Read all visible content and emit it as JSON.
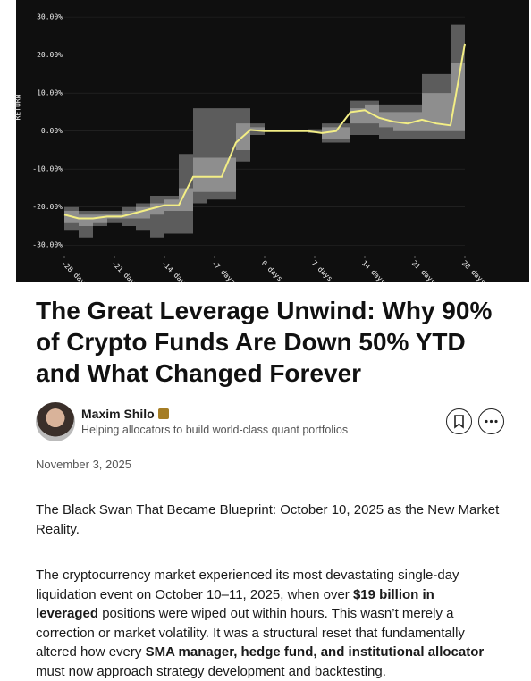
{
  "chart": {
    "type": "band-line",
    "y_label": "RETURN",
    "x": [
      -28,
      -26,
      -24,
      -22,
      -20,
      -18,
      -16,
      -14,
      -12,
      -10,
      -8,
      -6,
      -4,
      -2,
      0,
      2,
      4,
      6,
      8,
      10,
      12,
      14,
      16,
      18,
      20,
      22,
      24,
      26,
      28
    ],
    "ylim": [
      -33,
      34.5
    ],
    "xlim": [
      -28,
      28
    ],
    "yticks": [
      {
        "value": 30,
        "label": "30.00%"
      },
      {
        "value": 20,
        "label": "20.00%"
      },
      {
        "value": 10,
        "label": "10.00%"
      },
      {
        "value": 0,
        "label": "0.00%"
      },
      {
        "value": -10,
        "label": "-10.00%"
      },
      {
        "value": -20,
        "label": "-20.00%"
      },
      {
        "value": -30,
        "label": "-30.00%"
      }
    ],
    "xticks": [
      {
        "value": -28,
        "label": "-28 days"
      },
      {
        "value": -21,
        "label": "-21 days"
      },
      {
        "value": -14,
        "label": "-14 days"
      },
      {
        "value": -7,
        "label": "-7 days"
      },
      {
        "value": 0,
        "label": "0 days"
      },
      {
        "value": 7,
        "label": "7 days"
      },
      {
        "value": 14,
        "label": "14 days"
      },
      {
        "value": 21,
        "label": "21 days"
      },
      {
        "value": 28,
        "label": "28 days"
      }
    ],
    "bands": [
      {
        "color": "#5c5c5c",
        "lower": [
          -26,
          -28,
          -25,
          -24,
          -25,
          -26,
          -28,
          -27,
          -27,
          -19,
          -18,
          -18,
          -8,
          -1,
          0,
          0,
          0,
          -0.5,
          -3,
          -3,
          -1,
          -1,
          -2,
          -2,
          -2,
          -2,
          -2,
          -2,
          -2
        ],
        "upper": [
          -20,
          -21,
          -21,
          -21,
          -20,
          -19,
          -17,
          -17,
          -6,
          6,
          6,
          6,
          6,
          2,
          0,
          0,
          0,
          0.5,
          2,
          2,
          8,
          8,
          7,
          7,
          7,
          15,
          15,
          28,
          35
        ]
      },
      {
        "color": "#8e8e8e",
        "lower": [
          -24,
          -25,
          -24,
          -23,
          -23,
          -23,
          -22,
          -21,
          -21,
          -16,
          -16,
          -16,
          -5,
          0,
          0,
          0,
          0,
          0,
          -2,
          -2,
          2,
          2,
          1,
          0,
          0,
          0,
          0,
          0,
          0
        ],
        "upper": [
          -21,
          -22,
          -22,
          -22,
          -21,
          -20,
          -19,
          -18,
          -15,
          -7,
          -7,
          -7,
          2,
          1,
          0,
          0,
          0,
          0,
          1,
          1,
          6,
          7,
          5,
          5,
          5,
          10,
          10,
          18,
          30
        ]
      }
    ],
    "line": {
      "color": "#f3ee85",
      "values": [
        -22,
        -23,
        -23,
        -22.5,
        -22.5,
        -21.5,
        -20.5,
        -19.5,
        -19.5,
        -12,
        -12,
        -12,
        -3,
        0.3,
        0,
        0,
        0,
        0,
        -0.5,
        0,
        5,
        5.5,
        3.5,
        2.5,
        2,
        3,
        2,
        1.5,
        23
      ]
    }
  },
  "article": {
    "title": "The Great Leverage Unwind: Why 90% of Crypto Funds Are Down 50% YTD and What Changed Forever",
    "author": "Maxim Shilo",
    "author_headline": "Helping allocators to build world-class quant portfolios",
    "date": "November 3, 2025",
    "paragraphs": [
      [
        {
          "text": "The Black Swan That Became Blueprint: October 10, 2025 as the New Market Reality."
        }
      ],
      [
        {
          "text": "The cryptocurrency market experienced its most devastating single-day liquidation event on October 10–11, 2025, when over "
        },
        {
          "text": "$19 billion in leveraged",
          "bold": true
        },
        {
          "text": " positions were wiped out within hours. This wasn’t merely a correction or market volatility. It was a structural reset that fundamentally altered how every "
        },
        {
          "text": "SMA manager, hedge fund, and institutional allocator",
          "bold": true
        },
        {
          "text": " must now approach strategy development and backtesting."
        }
      ]
    ]
  }
}
